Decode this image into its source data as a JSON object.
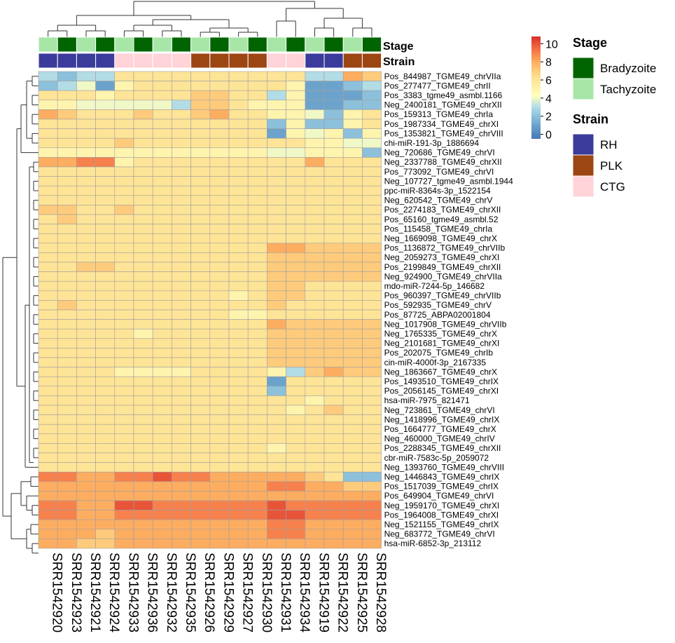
{
  "chart_data": {
    "type": "heatmap",
    "title": "",
    "columns": [
      "SRR1542920",
      "SRR1542923",
      "SRR1542921",
      "SRR1542924",
      "SRR1542933",
      "SRR1542936",
      "SRR1542932",
      "SRR1542935",
      "SRR1542926",
      "SRR1542929",
      "SRR1542927",
      "SRR1542930",
      "SRR1542931",
      "SRR1542934",
      "SRR1542919",
      "SRR1542922",
      "SRR1542925",
      "SRR1542928"
    ],
    "rows": [
      {
        "label": "Pos_844987_TGME49_chrVIIa",
        "values": [
          3,
          2,
          3,
          3,
          6,
          6,
          6,
          6,
          6,
          6,
          6,
          6,
          6,
          6,
          3,
          3,
          8,
          7
        ]
      },
      {
        "label": "Pos_277477_TGME49_chrII",
        "values": [
          2,
          3,
          4,
          1,
          5,
          6,
          6,
          6,
          6,
          6,
          6,
          6,
          6,
          5,
          1,
          1,
          2,
          3
        ]
      },
      {
        "label": "Pos_3383_tgme49_asmbl.1166",
        "values": [
          6,
          6,
          6,
          5,
          6,
          6,
          6,
          6,
          7,
          7,
          6,
          6,
          3,
          5,
          1,
          1,
          1,
          2
        ]
      },
      {
        "label": "Neg_2400181_TGME49_chrXII",
        "values": [
          5,
          5,
          4,
          4,
          4,
          4,
          4,
          3,
          7,
          7,
          6,
          5,
          5,
          5,
          1,
          1,
          2,
          2
        ]
      },
      {
        "label": "Pos_159313_TGME49_chrIa",
        "values": [
          8,
          7,
          6,
          6,
          6,
          7,
          6,
          6,
          7,
          8,
          6,
          6,
          5,
          5,
          4,
          2,
          5,
          6
        ]
      },
      {
        "label": "Pos_1987334_TGME49_chrXI",
        "values": [
          6,
          6,
          6,
          6,
          6,
          6,
          6,
          6,
          6,
          6,
          6,
          6,
          2,
          5,
          2,
          2,
          5,
          6
        ]
      },
      {
        "label": "Pos_1353821_TGME49_chrVIII",
        "values": [
          6,
          6,
          6,
          6,
          6,
          6,
          6,
          6,
          6,
          6,
          6,
          6,
          1,
          5,
          4,
          5,
          2,
          5
        ]
      },
      {
        "label": "chi-miR-191-3p_1886694",
        "values": [
          6,
          6,
          6,
          6,
          7,
          6,
          6,
          6,
          6,
          6,
          6,
          6,
          6,
          6,
          5,
          5,
          4,
          4
        ]
      },
      {
        "label": "Neg_720686_TGME49_chrVI",
        "values": [
          5,
          5,
          5,
          5,
          5,
          5,
          5,
          5,
          5,
          5,
          5,
          5,
          4,
          4,
          5,
          5,
          5,
          2
        ]
      },
      {
        "label": "Neg_2337788_TGME49_chrXII",
        "values": [
          8,
          8,
          9,
          9,
          5,
          6,
          6,
          6,
          6,
          6,
          6,
          6,
          6,
          6,
          8,
          6,
          6,
          6
        ]
      },
      {
        "label": "Pos_773092_TGME49_chrVI",
        "values": [
          6,
          6,
          6,
          6,
          6,
          6,
          6,
          6,
          6,
          6,
          6,
          6,
          6,
          6,
          6,
          6,
          6,
          6
        ]
      },
      {
        "label": "Neg_107727_tgme49_asmbl.1944",
        "values": [
          6,
          6,
          6,
          6,
          6,
          6,
          6,
          6,
          6,
          6,
          6,
          6,
          6,
          6,
          6,
          6,
          6,
          6
        ]
      },
      {
        "label": "ppc-miR-8364s-3p_1522154",
        "values": [
          6,
          6,
          6,
          6,
          6,
          6,
          6,
          6,
          6,
          6,
          6,
          6,
          6,
          6,
          6,
          6,
          6,
          6
        ]
      },
      {
        "label": "Neg_620542_TGME49_chrV",
        "values": [
          6,
          6,
          6,
          6,
          6,
          6,
          6,
          6,
          6,
          6,
          6,
          6,
          6,
          6,
          6,
          6,
          6,
          6
        ]
      },
      {
        "label": "Pos_2274183_TGME49_chrXII",
        "values": [
          7,
          7,
          6,
          6,
          7,
          6,
          6,
          6,
          6,
          6,
          6,
          6,
          6,
          6,
          6,
          6,
          6,
          6
        ]
      },
      {
        "label": "Pos_65160_tgme49_asmbl.52",
        "values": [
          6,
          7,
          6,
          6,
          6,
          6,
          6,
          6,
          6,
          6,
          6,
          6,
          6,
          6,
          6,
          6,
          6,
          6
        ]
      },
      {
        "label": "Pos_115458_TGME49_chrIa",
        "values": [
          6,
          6,
          6,
          6,
          6,
          6,
          6,
          6,
          6,
          6,
          6,
          6,
          6,
          6,
          6,
          6,
          6,
          6
        ]
      },
      {
        "label": "Neg_1669098_TGME49_chrX",
        "values": [
          6,
          6,
          6,
          6,
          6,
          6,
          6,
          6,
          6,
          6,
          6,
          6,
          6,
          6,
          6,
          6,
          6,
          6
        ]
      },
      {
        "label": "Pos_1136872_TGME49_chrVIIb",
        "values": [
          6,
          6,
          6,
          6,
          6,
          6,
          6,
          6,
          6,
          6,
          6,
          6,
          8,
          8,
          7,
          7,
          7,
          7
        ]
      },
      {
        "label": "Neg_2059273_TGME49_chrXI",
        "values": [
          6,
          6,
          6,
          6,
          6,
          6,
          6,
          6,
          6,
          6,
          6,
          6,
          7,
          7,
          7,
          7,
          7,
          7
        ]
      },
      {
        "label": "Pos_2199849_TGME49_chrXII",
        "values": [
          6,
          6,
          7,
          7,
          6,
          6,
          6,
          6,
          6,
          6,
          6,
          6,
          7,
          7,
          7,
          7,
          7,
          7
        ]
      },
      {
        "label": "Neg_924900_TGME49_chrVIIa",
        "values": [
          6,
          6,
          6,
          6,
          6,
          6,
          6,
          6,
          6,
          6,
          6,
          6,
          7,
          7,
          7,
          7,
          7,
          7
        ]
      },
      {
        "label": "mdo-miR-7244-5p_146682",
        "values": [
          6,
          6,
          6,
          6,
          6,
          6,
          6,
          6,
          6,
          6,
          6,
          6,
          7,
          7,
          6,
          6,
          6,
          6
        ]
      },
      {
        "label": "Pos_960397_TGME49_chrVIIb",
        "values": [
          6,
          6,
          6,
          6,
          6,
          6,
          6,
          6,
          6,
          6,
          5,
          6,
          7,
          7,
          6,
          6,
          6,
          6
        ]
      },
      {
        "label": "Pos_592935_TGME49_chrV",
        "values": [
          6,
          7,
          6,
          6,
          6,
          6,
          6,
          6,
          6,
          6,
          6,
          6,
          7,
          6,
          6,
          6,
          6,
          6
        ]
      },
      {
        "label": "Pos_87725_ABPA02001804",
        "values": [
          6,
          6,
          6,
          6,
          6,
          6,
          6,
          6,
          6,
          6,
          5,
          5,
          6,
          6,
          6,
          6,
          6,
          6
        ]
      },
      {
        "label": "Neg_1017908_TGME49_chrVIIb",
        "values": [
          6,
          6,
          6,
          6,
          6,
          6,
          6,
          6,
          6,
          6,
          6,
          6,
          8,
          7,
          7,
          7,
          7,
          7
        ]
      },
      {
        "label": "Neg_1765335_TGME49_chrX",
        "values": [
          6,
          6,
          6,
          6,
          6,
          5,
          6,
          6,
          6,
          6,
          6,
          6,
          7,
          7,
          7,
          7,
          7,
          7
        ]
      },
      {
        "label": "Neg_2101681_TGME49_chrXI",
        "values": [
          6,
          6,
          6,
          6,
          6,
          6,
          6,
          6,
          6,
          6,
          6,
          6,
          7,
          7,
          7,
          7,
          7,
          7
        ]
      },
      {
        "label": "Pos_202075_TGME49_chrIb",
        "values": [
          6,
          6,
          6,
          6,
          6,
          6,
          6,
          6,
          6,
          6,
          6,
          6,
          7,
          7,
          7,
          7,
          7,
          7
        ]
      },
      {
        "label": "cin-miR-4000f-3p_2167335",
        "values": [
          6,
          6,
          6,
          6,
          6,
          6,
          6,
          6,
          6,
          6,
          6,
          6,
          7,
          7,
          7,
          7,
          7,
          7
        ]
      },
      {
        "label": "Neg_1863667_TGME49_chrX",
        "values": [
          6,
          6,
          6,
          6,
          5,
          5,
          5,
          5,
          6,
          6,
          6,
          6,
          5,
          3,
          7,
          8,
          7,
          7
        ]
      },
      {
        "label": "Pos_1493510_TGME49_chrIX",
        "values": [
          6,
          6,
          6,
          6,
          6,
          6,
          6,
          6,
          6,
          6,
          6,
          6,
          1,
          6,
          6,
          6,
          6,
          6
        ]
      },
      {
        "label": "Pos_2056145_TGME49_chrXI",
        "values": [
          6,
          6,
          6,
          6,
          6,
          6,
          6,
          6,
          6,
          6,
          6,
          6,
          2,
          6,
          6,
          6,
          6,
          6
        ]
      },
      {
        "label": "hsa-miR-7975_821471",
        "values": [
          6,
          6,
          6,
          6,
          6,
          6,
          6,
          6,
          6,
          6,
          6,
          6,
          6,
          6,
          5,
          6,
          6,
          6
        ]
      },
      {
        "label": "Neg_723861_TGME49_chrVI",
        "values": [
          6,
          6,
          6,
          6,
          6,
          6,
          6,
          6,
          6,
          6,
          6,
          6,
          6,
          5,
          6,
          7,
          6,
          6
        ]
      },
      {
        "label": "Neg_1418996_TGME49_chrIX",
        "values": [
          6,
          6,
          6,
          6,
          6,
          6,
          6,
          6,
          6,
          6,
          6,
          6,
          6,
          6,
          6,
          6,
          6,
          6
        ]
      },
      {
        "label": "Pos_1664777_TGME49_chrX",
        "values": [
          6,
          6,
          6,
          6,
          6,
          6,
          6,
          6,
          6,
          6,
          6,
          6,
          6,
          6,
          6,
          6,
          6,
          6
        ]
      },
      {
        "label": "Neg_460000_TGME49_chrIV",
        "values": [
          6,
          6,
          6,
          6,
          6,
          6,
          6,
          6,
          6,
          6,
          6,
          6,
          6,
          6,
          6,
          6,
          6,
          6
        ]
      },
      {
        "label": "Pos_2288345_TGME49_chrXII",
        "values": [
          6,
          6,
          6,
          6,
          6,
          6,
          6,
          6,
          6,
          6,
          6,
          6,
          5,
          6,
          6,
          6,
          6,
          6
        ]
      },
      {
        "label": "cbr-miR-7583c-5p_2059072",
        "values": [
          6,
          6,
          6,
          6,
          6,
          6,
          6,
          6,
          6,
          6,
          6,
          6,
          6,
          6,
          6,
          6,
          6,
          6
        ]
      },
      {
        "label": "Neg_1393760_TGME49_chrVIII",
        "values": [
          6,
          6,
          6,
          6,
          6,
          6,
          6,
          6,
          6,
          6,
          6,
          6,
          6,
          6,
          6,
          6,
          6,
          6
        ]
      },
      {
        "label": "Neg_1446843_TGME49_chrIX",
        "values": [
          9,
          9,
          8,
          8,
          9,
          9,
          10,
          9,
          9,
          8,
          8,
          8,
          8,
          8,
          7,
          6,
          2,
          2
        ]
      },
      {
        "label": "Pos_1517039_TGME49_chrIX",
        "values": [
          8,
          8,
          8,
          8,
          8,
          8,
          8,
          8,
          8,
          8,
          8,
          8,
          9,
          9,
          8,
          8,
          7,
          7
        ]
      },
      {
        "label": "Pos_649904_TGME49_chrVI",
        "values": [
          8,
          8,
          8,
          8,
          8,
          8,
          8,
          8,
          8,
          8,
          8,
          8,
          8,
          8,
          8,
          8,
          8,
          8
        ]
      },
      {
        "label": "Neg_1959170_TGME49_chrXI",
        "values": [
          9,
          9,
          8,
          8,
          10,
          10,
          9,
          9,
          9,
          9,
          9,
          9,
          10,
          9,
          9,
          9,
          9,
          9
        ]
      },
      {
        "label": "Pos_1964008_TGME49_chrXI",
        "values": [
          9,
          9,
          8,
          8,
          9,
          9,
          9,
          9,
          9,
          9,
          9,
          9,
          10,
          10,
          9,
          9,
          9,
          9
        ]
      },
      {
        "label": "Neg_1521155_TGME49_chrIX",
        "values": [
          8,
          8,
          8,
          8,
          8,
          8,
          8,
          8,
          8,
          8,
          8,
          8,
          9,
          9,
          8,
          8,
          8,
          8
        ]
      },
      {
        "label": "Neg_683772_TGME49_chrVI",
        "values": [
          8,
          8,
          8,
          7,
          8,
          8,
          8,
          8,
          8,
          8,
          8,
          8,
          9,
          9,
          8,
          8,
          8,
          8
        ]
      },
      {
        "label": "hsa-miR-6852-3p_213112",
        "values": [
          8,
          8,
          7,
          7,
          8,
          8,
          8,
          8,
          8,
          8,
          8,
          8,
          8,
          8,
          8,
          8,
          8,
          8
        ]
      }
    ],
    "annotations": {
      "stage": {
        "label": "Stage",
        "values": [
          "Tachyzoite",
          "Bradyzoite",
          "Tachyzoite",
          "Bradyzoite",
          "Tachyzoite",
          "Bradyzoite",
          "Tachyzoite",
          "Bradyzoite",
          "Tachyzoite",
          "Bradyzoite",
          "Tachyzoite",
          "Bradyzoite",
          "Tachyzoite",
          "Bradyzoite",
          "Tachyzoite",
          "Bradyzoite",
          "Tachyzoite",
          "Bradyzoite"
        ]
      },
      "strain": {
        "label": "Strain",
        "values": [
          "RH",
          "RH",
          "RH",
          "RH",
          "CTG",
          "CTG",
          "CTG",
          "CTG",
          "PLK",
          "PLK",
          "PLK",
          "PLK",
          "CTG",
          "CTG",
          "RH",
          "RH",
          "PLK",
          "PLK"
        ]
      }
    },
    "color_scale": {
      "range": [
        -0.5,
        10.8
      ],
      "ticks": [
        "10",
        "8",
        "6",
        "4",
        "2",
        "0"
      ],
      "colors": [
        "#4575b4",
        "#74add1",
        "#abd9e9",
        "#ffffbf",
        "#fee090",
        "#fdae61",
        "#f46d43",
        "#d73027"
      ]
    },
    "legend": {
      "stage": {
        "title": "Stage",
        "items": [
          {
            "label": "Bradyzoite",
            "color": "#006400"
          },
          {
            "label": "Tachyzoite",
            "color": "#a8e6a8"
          }
        ]
      },
      "strain": {
        "title": "Strain",
        "items": [
          {
            "label": "RH",
            "color": "#3b3b9b"
          },
          {
            "label": "PLK",
            "color": "#9c4614"
          },
          {
            "label": "CTG",
            "color": "#ffd3d8"
          }
        ]
      }
    }
  }
}
